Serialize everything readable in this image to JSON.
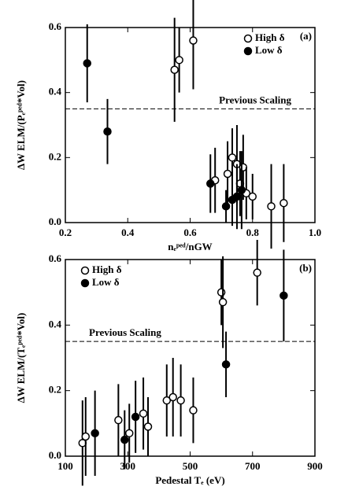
{
  "chart_data": [
    {
      "type": "scatter",
      "x_label": "nₑᵖᵉᵈ/nGW",
      "y_label": "ΔW ELM/(Pₑᵖᵉᵈ*Vol)",
      "annotation": "(a)",
      "legend": "upper right",
      "xlim": [
        0.2,
        1.0
      ],
      "xticks": [
        0.2,
        0.4,
        0.6,
        0.8,
        {
          "value": 1.0,
          "label": "1.0"
        }
      ],
      "ylim": [
        0,
        0.6
      ],
      "yticks": [
        {
          "value": 0,
          "label": "0.0"
        },
        0.2,
        0.4,
        0.6
      ],
      "reference_line": {
        "value": 0.35,
        "label": "Previous Scaling"
      },
      "series": [
        {
          "name": "High δ",
          "marker": "open",
          "color": "#000",
          "x": [
            0.55,
            0.565,
            0.61,
            0.68,
            0.72,
            0.735,
            0.75,
            0.76,
            0.77,
            0.78,
            0.8,
            0.86,
            0.9
          ],
          "values": [
            0.47,
            0.5,
            0.56,
            0.13,
            0.15,
            0.2,
            0.18,
            0.12,
            0.17,
            0.09,
            0.08,
            0.05,
            0.06
          ],
          "errors": [
            0.16,
            0.1,
            0.15,
            0.1,
            0.1,
            0.09,
            0.12,
            0.1,
            0.1,
            0.08,
            0.07,
            0.13,
            0.12
          ]
        },
        {
          "name": "Low δ",
          "marker": "filled",
          "color": "#000",
          "x": [
            0.27,
            0.335,
            0.665,
            0.715,
            0.735,
            0.75,
            0.765
          ],
          "values": [
            0.49,
            0.28,
            0.12,
            0.05,
            0.07,
            0.08,
            0.1
          ],
          "errors": [
            0.12,
            0.1,
            0.09,
            0.05,
            0.08,
            0.1,
            0.12
          ]
        }
      ]
    },
    {
      "type": "scatter",
      "x_label": "Pedestal Tₑ (eV)",
      "y_label": "ΔW ELM/(Tₑᵖᵉᵈ*Vol)",
      "annotation": "(b)",
      "legend": "upper left",
      "xlim": [
        100,
        900
      ],
      "xticks": [
        100,
        300,
        500,
        700,
        900
      ],
      "ylim": [
        0,
        0.6
      ],
      "yticks": [
        {
          "value": 0,
          "label": "0.0"
        },
        0.2,
        0.4,
        0.6
      ],
      "reference_line": {
        "value": 0.35,
        "label": "Previous Scaling"
      },
      "series": [
        {
          "name": "High δ",
          "marker": "open",
          "color": "#000",
          "x": [
            155,
            165,
            270,
            305,
            350,
            365,
            425,
            445,
            470,
            510,
            600,
            605,
            715
          ],
          "values": [
            0.04,
            0.06,
            0.11,
            0.07,
            0.13,
            0.09,
            0.17,
            0.18,
            0.17,
            0.14,
            0.5,
            0.47,
            0.56
          ],
          "errors": [
            0.13,
            0.12,
            0.11,
            0.09,
            0.11,
            0.09,
            0.11,
            0.12,
            0.11,
            0.1,
            0.1,
            0.14,
            0.1
          ]
        },
        {
          "name": "Low δ",
          "marker": "filled",
          "color": "#000",
          "x": [
            195,
            290,
            325,
            615,
            800
          ],
          "values": [
            0.07,
            0.05,
            0.12,
            0.28,
            0.49
          ],
          "errors": [
            0.13,
            0.09,
            0.11,
            0.1,
            0.14
          ]
        }
      ]
    }
  ]
}
